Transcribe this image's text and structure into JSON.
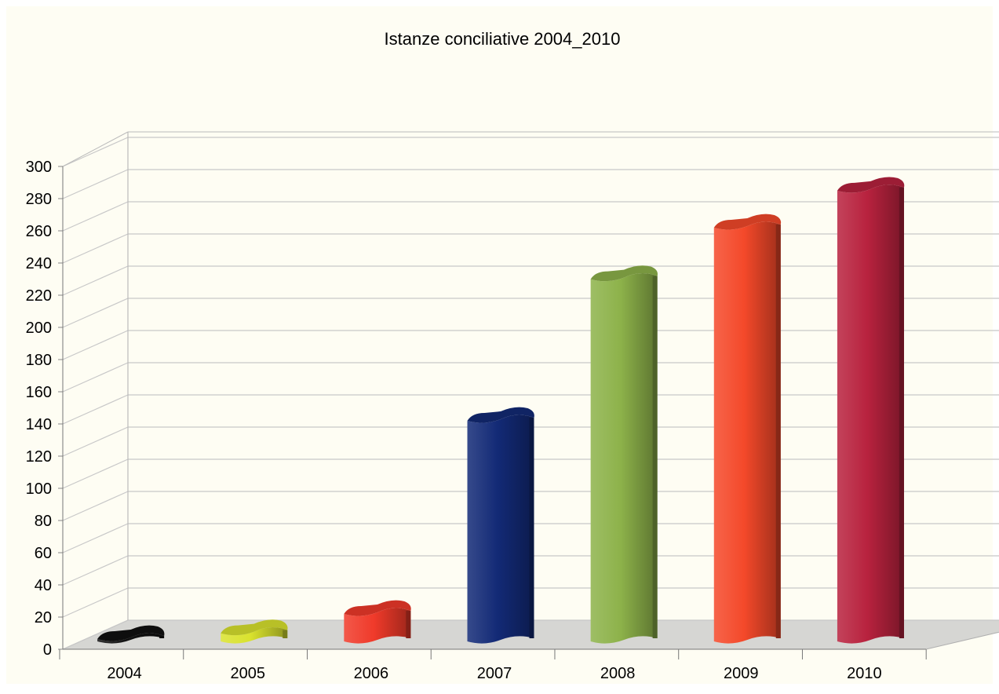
{
  "chart_data": {
    "type": "bar",
    "title": "Istanze conciliative 2004_2010",
    "xlabel": "",
    "ylabel": "",
    "categories": [
      "2004",
      "2005",
      "2006",
      "2007",
      "2008",
      "2009",
      "2010"
    ],
    "values": [
      3,
      8,
      20,
      140,
      228,
      260,
      283
    ],
    "ylim": [
      0,
      300
    ],
    "yticks": [
      "0",
      "20",
      "40",
      "60",
      "80",
      "100",
      "120",
      "140",
      "160",
      "180",
      "200",
      "220",
      "240",
      "260",
      "280",
      "300"
    ],
    "grid": true,
    "legend": "none",
    "style": "3d-cylinder",
    "colors": [
      "#111111",
      "#d9e22e",
      "#f03a2a",
      "#132a76",
      "#8db24a",
      "#f4492a",
      "#b8223e"
    ],
    "background": "#fefdf3"
  }
}
